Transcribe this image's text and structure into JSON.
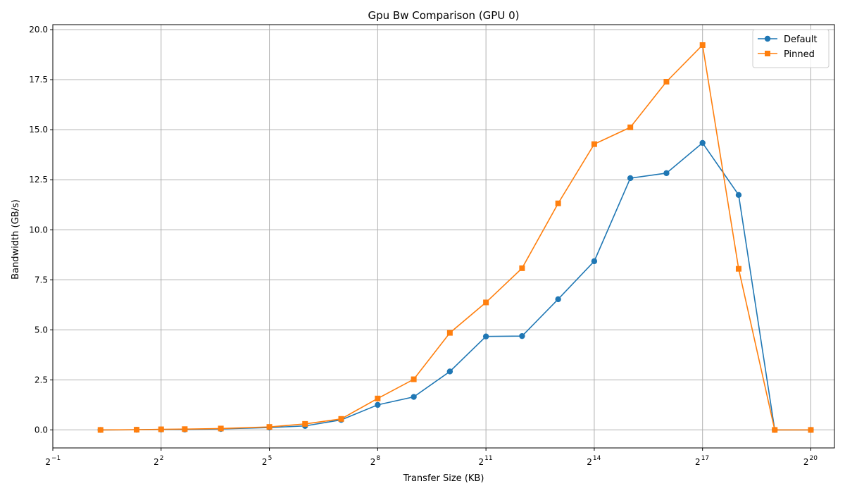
{
  "chart_data": {
    "type": "line",
    "title": "Gpu Bw Comparison (GPU 0)",
    "xlabel": "Transfer Size (KB)",
    "ylabel": "Bandwidth (GB/s)",
    "x_scale": "log2",
    "xlim": [
      0.5,
      1650000
    ],
    "ylim": [
      -0.9,
      20.25
    ],
    "x_ticks": [
      {
        "value": 0.5,
        "base": "2",
        "exp": "−1"
      },
      {
        "value": 4,
        "base": "2",
        "exp": "2"
      },
      {
        "value": 32,
        "base": "2",
        "exp": "5"
      },
      {
        "value": 256,
        "base": "2",
        "exp": "8"
      },
      {
        "value": 2048,
        "base": "2",
        "exp": "11"
      },
      {
        "value": 16384,
        "base": "2",
        "exp": "14"
      },
      {
        "value": 131072,
        "base": "2",
        "exp": "17"
      },
      {
        "value": 1048576,
        "base": "2",
        "exp": "20"
      }
    ],
    "y_ticks": [
      {
        "value": 0,
        "label": "0.0"
      },
      {
        "value": 2.5,
        "label": "2.5"
      },
      {
        "value": 5,
        "label": "5.0"
      },
      {
        "value": 7.5,
        "label": "7.5"
      },
      {
        "value": 10,
        "label": "10.0"
      },
      {
        "value": 12.5,
        "label": "12.5"
      },
      {
        "value": 15,
        "label": "15.0"
      },
      {
        "value": 17.5,
        "label": "17.5"
      },
      {
        "value": 20,
        "label": "20.0"
      }
    ],
    "grid": true,
    "legend_position": "top-right",
    "x": [
      1.25,
      2.5,
      4,
      6.3,
      12.6,
      32,
      63.5,
      127,
      256,
      512,
      1024,
      2048,
      4096,
      8192,
      16384,
      32768,
      65536,
      131072,
      262144,
      524288,
      1048576
    ],
    "series": [
      {
        "name": "Default",
        "color": "#1f77b4",
        "marker": "circle",
        "values": [
          0.0,
          0.01,
          0.02,
          0.02,
          0.05,
          0.12,
          0.2,
          0.5,
          1.25,
          1.65,
          2.92,
          4.67,
          4.69,
          6.53,
          8.43,
          12.58,
          12.83,
          14.34,
          11.74,
          0.0,
          0.0
        ]
      },
      {
        "name": "Pinned",
        "color": "#ff7f0e",
        "marker": "square",
        "values": [
          0.0,
          0.01,
          0.03,
          0.04,
          0.07,
          0.15,
          0.3,
          0.55,
          1.57,
          2.53,
          4.85,
          6.37,
          8.08,
          11.32,
          14.28,
          15.12,
          17.4,
          19.23,
          8.05,
          0.0,
          0.0
        ]
      }
    ]
  }
}
